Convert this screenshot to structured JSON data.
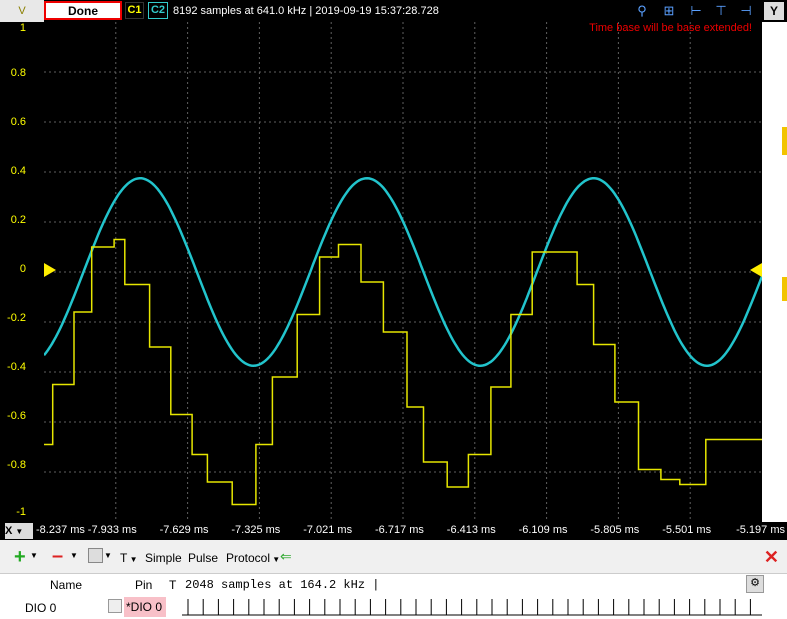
{
  "toolbar": {
    "y_unit": "V",
    "done_label": "Done",
    "c1_label": "C1",
    "c2_label": "C2",
    "status": "8192 samples at 641.0 kHz | 2019-09-19 15:37:28.728",
    "y_button": "Y",
    "icons": [
      "zoom-icon",
      "zoom-out-icon",
      "cursor-left-icon",
      "cursor-mid-icon",
      "cursor-right-icon",
      "settings-icon"
    ]
  },
  "plot": {
    "warning": "Time base will be base extended!",
    "colors": {
      "channel1": "#e6e600",
      "channel2": "#22c4cc",
      "grid": "#606060",
      "trigger": "#ffee00"
    }
  },
  "axis": {
    "y_ticks": [
      "1",
      "0.8",
      "0.6",
      "0.4",
      "0.2",
      "0",
      "-0.2",
      "-0.4",
      "-0.6",
      "-0.8",
      "-1"
    ],
    "x_button": "X",
    "x_ticks": [
      "-8.237 ms",
      "-7.933 ms",
      "-7.629 ms",
      "-7.325 ms",
      "-7.021 ms",
      "-6.717 ms",
      "-6.413 ms",
      "-6.109 ms",
      "-5.805 ms",
      "-5.501 ms",
      "-5.197 ms"
    ]
  },
  "bottom_toolbar": {
    "simple": "Simple",
    "pulse": "Pulse",
    "protocol": "Protocol",
    "t_label": "T"
  },
  "dio_table": {
    "col_name": "Name",
    "col_pin": "Pin",
    "col_t": "T",
    "info": "2048 samples at 164.2 kHz |",
    "rows": [
      {
        "name": "DIO 0",
        "pin": "*DIO 0"
      }
    ]
  },
  "chart_data": {
    "type": "line",
    "ylim": [
      -1,
      1
    ],
    "x_range_ms": [
      -8.237,
      -5.197
    ],
    "series": [
      {
        "name": "C2",
        "color": "#22c4cc",
        "waveform": "sine",
        "amplitude_v": 0.375,
        "offset_v": 0,
        "period_ms": 0.96,
        "first_peak_ms": -7.83
      },
      {
        "name": "C1",
        "color": "#e6e600",
        "waveform": "staircase",
        "x": [
          -8.237,
          -8.2,
          -8.11,
          -8.035,
          -7.94,
          -7.895,
          -7.79,
          -7.7,
          -7.61,
          -7.545,
          -7.44,
          -7.34,
          -7.27,
          -7.165,
          -7.07,
          -6.99,
          -6.895,
          -6.8,
          -6.7,
          -6.63,
          -6.53,
          -6.44,
          -6.345,
          -6.26,
          -6.17,
          -6.08,
          -5.98,
          -5.91,
          -5.82,
          -5.72,
          -5.625,
          -5.545,
          -5.435,
          -5.35,
          -5.25
        ],
        "y": [
          -0.69,
          -0.45,
          -0.16,
          0.1,
          0.13,
          -0.05,
          -0.3,
          -0.57,
          -0.73,
          -0.84,
          -0.93,
          -0.69,
          -0.42,
          -0.17,
          0.06,
          0.11,
          -0.04,
          -0.24,
          -0.54,
          -0.76,
          -0.86,
          -0.73,
          -0.46,
          -0.17,
          0.08,
          0.08,
          -0.05,
          -0.29,
          -0.52,
          -0.79,
          -0.83,
          -0.85,
          -0.67,
          -0.67,
          -0.67
        ]
      }
    ]
  }
}
